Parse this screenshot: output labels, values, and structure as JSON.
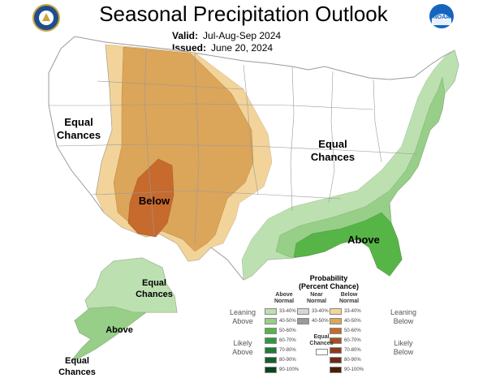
{
  "title": "Seasonal Precipitation Outlook",
  "valid": {
    "label": "Valid:",
    "value": "Jul-Aug-Sep 2024"
  },
  "issued": {
    "label": "Issued:",
    "value": "June 20, 2024"
  },
  "logos": {
    "left": "doc-seal-icon",
    "right": "noaa-logo-icon"
  },
  "map_labels": {
    "west": "Equal\nChances",
    "east": "Equal\nChances",
    "below": "Below",
    "above": "Above",
    "alaska_top": "Equal\nChances",
    "alaska_above": "Above",
    "alaska_bottom": "Equal\nChances"
  },
  "colors": {
    "land": "#ffffff",
    "border": "#9a9a9a",
    "below_33": "#f2d49a",
    "below_40": "#dba55a",
    "below_50": "#c66a2e",
    "above_33": "#bde0b0",
    "above_40": "#97cf88",
    "above_50": "#57b547"
  },
  "legend": {
    "title": "Probability\n(Percent Chance)",
    "columns": [
      "Above\nNormal",
      "Near\nNormal",
      "Below\nNormal"
    ],
    "left_labels": [
      "Leaning\nAbove",
      "Likely\nAbove"
    ],
    "right_labels": [
      "Leaning\nBelow",
      "Likely\nBelow"
    ],
    "equal_chances": "Equal\nChances",
    "above": [
      {
        "label": "33-40%",
        "color": "#bde0b0"
      },
      {
        "label": "40-50%",
        "color": "#97cf88"
      },
      {
        "label": "50-60%",
        "color": "#57b547"
      },
      {
        "label": "60-70%",
        "color": "#2e9a3d"
      },
      {
        "label": "70-80%",
        "color": "#1f7d34"
      },
      {
        "label": "80-90%",
        "color": "#15602b"
      },
      {
        "label": "90-100%",
        "color": "#0b4220"
      }
    ],
    "near": [
      {
        "label": "33-40%",
        "color": "#d6d6d6"
      },
      {
        "label": "40-50%",
        "color": "#9a9a9a"
      }
    ],
    "below": [
      {
        "label": "33-40%",
        "color": "#f2d49a"
      },
      {
        "label": "40-50%",
        "color": "#dba55a"
      },
      {
        "label": "50-60%",
        "color": "#c66a2e"
      },
      {
        "label": "60-70%",
        "color": "#a65020"
      },
      {
        "label": "70-80%",
        "color": "#8a3c18"
      },
      {
        "label": "80-90%",
        "color": "#6b2c10"
      },
      {
        "label": "90-100%",
        "color": "#4a1e0a"
      }
    ]
  }
}
